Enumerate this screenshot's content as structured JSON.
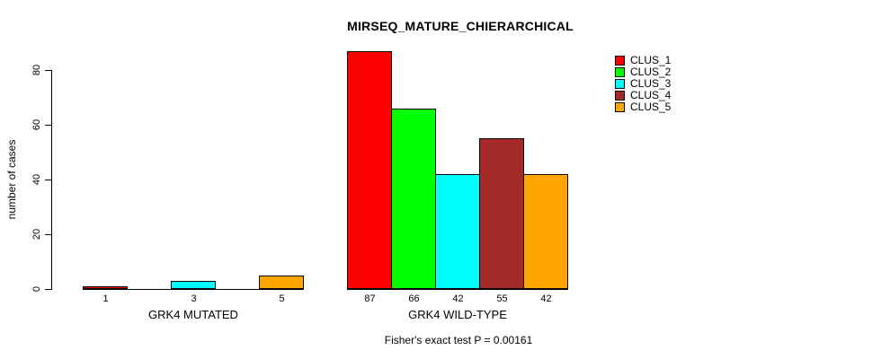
{
  "title": "MIRSEQ_MATURE_CHIERARCHICAL",
  "y_axis": {
    "label": "number of cases",
    "ticks": [
      0,
      20,
      40,
      60,
      80
    ]
  },
  "legend": [
    {
      "label": "CLUS_1",
      "color": "#FF0000"
    },
    {
      "label": "CLUS_2",
      "color": "#00FF00"
    },
    {
      "label": "CLUS_3",
      "color": "#00FFFF"
    },
    {
      "label": "CLUS_4",
      "color": "#A52A2A"
    },
    {
      "label": "CLUS_5",
      "color": "#FFA500"
    }
  ],
  "footer": "Fisher's exact test P = 0.00161",
  "chart_data": {
    "type": "bar",
    "title": "MIRSEQ_MATURE_CHIERARCHICAL",
    "xlabel": "",
    "ylabel": "number of cases",
    "ylim": [
      0,
      80
    ],
    "y_ticks": [
      0,
      20,
      40,
      60,
      80
    ],
    "grid": false,
    "legend_position": "top-right",
    "categories": [
      "CLUS_1",
      "CLUS_2",
      "CLUS_3",
      "CLUS_4",
      "CLUS_5"
    ],
    "colors": [
      "#FF0000",
      "#00FF00",
      "#00FFFF",
      "#A52A2A",
      "#FFA500"
    ],
    "groups": [
      {
        "label": "GRK4 MUTATED",
        "values": [
          1,
          0,
          3,
          0,
          5
        ],
        "bar_labels": [
          "1",
          "",
          "3",
          "",
          "5"
        ]
      },
      {
        "label": "GRK4 WILD-TYPE",
        "values": [
          87,
          66,
          42,
          55,
          42
        ],
        "bar_labels": [
          "87",
          "66",
          "42",
          "55",
          "42"
        ]
      }
    ],
    "annotation": "Fisher's exact test P = 0.00161"
  }
}
